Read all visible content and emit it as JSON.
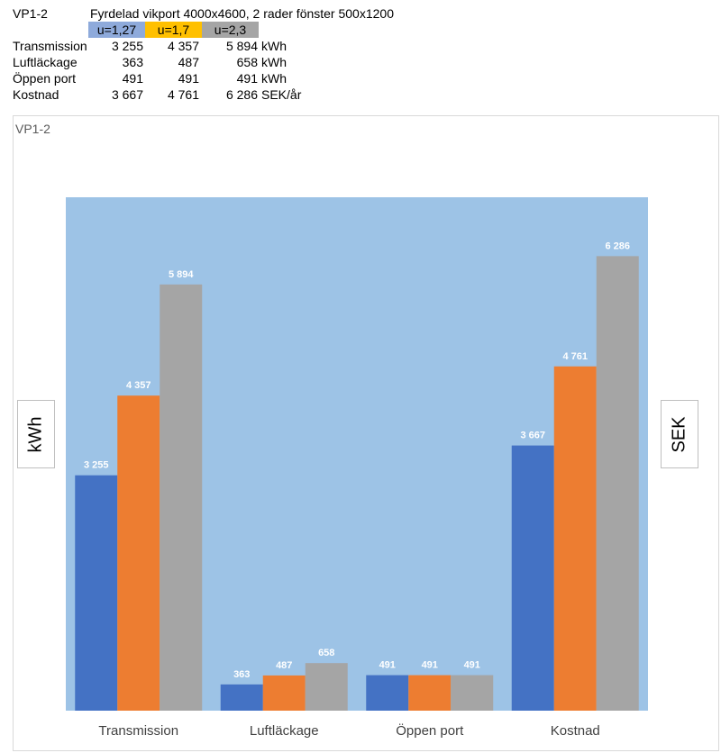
{
  "table": {
    "id_label": "VP1-2",
    "description": "Fyrdelad vikport 4000x4600, 2 rader fönster 500x1200",
    "headers": [
      {
        "label": "u=1,27",
        "color": "#8eaadb"
      },
      {
        "label": "u=1,7",
        "color": "#ffc000"
      },
      {
        "label": "u=2,3",
        "color": "#a5a5a5"
      }
    ],
    "rows": [
      {
        "label": "Transmission",
        "values": [
          "3 255",
          "4 357",
          "5 894"
        ],
        "unit": "kWh"
      },
      {
        "label": "Luftläckage",
        "values": [
          "363",
          "487",
          "658"
        ],
        "unit": "kWh"
      },
      {
        "label": "Öppen port",
        "values": [
          "491",
          "491",
          "491"
        ],
        "unit": "kWh"
      },
      {
        "label": "Kostnad",
        "values": [
          "3 667",
          "4 761",
          "6 286"
        ],
        "unit": "SEK/år"
      }
    ]
  },
  "chart_title": "VP1-2",
  "left_axis_label": "kWh",
  "right_axis_label": "SEK",
  "colors": {
    "plot_background": "#9dc3e6",
    "series": [
      "#4472c4",
      "#ed7d31",
      "#a5a5a5"
    ]
  },
  "chart_data": {
    "type": "bar",
    "title": "VP1-2",
    "categories": [
      "Transmission",
      "Luftläckage",
      "Öppen port",
      "Kostnad"
    ],
    "series": [
      {
        "values": [
          3255,
          363,
          491,
          3667
        ],
        "color": "#4472c4"
      },
      {
        "values": [
          4357,
          487,
          491,
          4761
        ],
        "color": "#ed7d31"
      },
      {
        "values": [
          5894,
          658,
          491,
          6286
        ],
        "color": "#a5a5a5"
      }
    ],
    "data_labels": [
      [
        "3 255",
        "363",
        "491",
        "3 667"
      ],
      [
        "4 357",
        "487",
        "491",
        "4 761"
      ],
      [
        "5 894",
        "658",
        "491",
        "6 286"
      ]
    ],
    "ylabel": "kWh",
    "y2label": "SEK",
    "ylim": [
      0,
      7100
    ],
    "grid": false,
    "legend": "none"
  }
}
